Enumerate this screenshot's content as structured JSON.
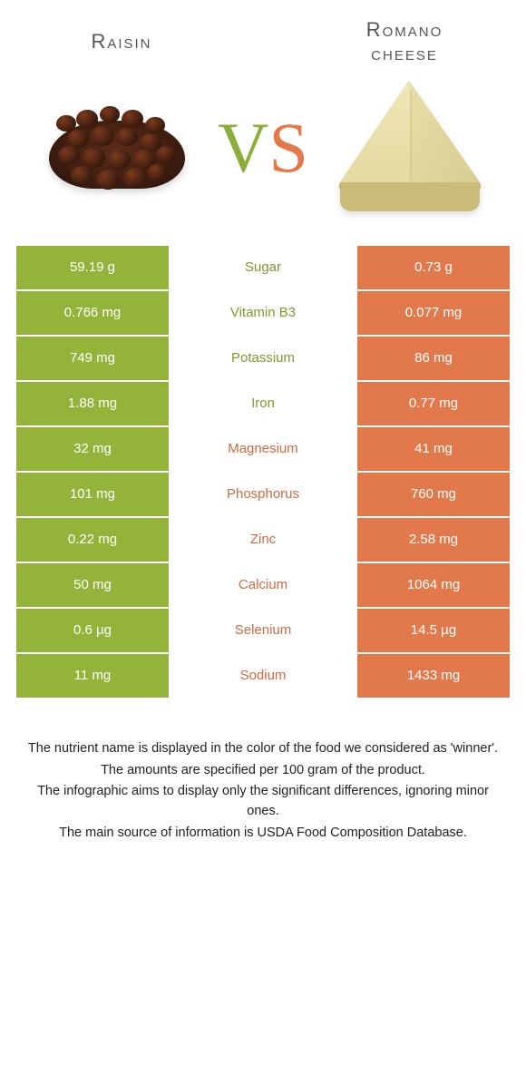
{
  "colors": {
    "green": "#93b33a",
    "orange": "#e2794c",
    "label_green": "#7d9a30",
    "label_orange": "#cf6a43",
    "bg": "#ffffff"
  },
  "header": {
    "left_title": "Raisin",
    "right_title": "Romano\ncheese",
    "vs_v": "V",
    "vs_s": "S"
  },
  "rows": [
    {
      "nutrient": "Sugar",
      "left": "59.19 g",
      "right": "0.73 g",
      "winner": "left"
    },
    {
      "nutrient": "Vitamin B3",
      "left": "0.766 mg",
      "right": "0.077 mg",
      "winner": "left"
    },
    {
      "nutrient": "Potassium",
      "left": "749 mg",
      "right": "86 mg",
      "winner": "left"
    },
    {
      "nutrient": "Iron",
      "left": "1.88 mg",
      "right": "0.77 mg",
      "winner": "left"
    },
    {
      "nutrient": "Magnesium",
      "left": "32 mg",
      "right": "41 mg",
      "winner": "right"
    },
    {
      "nutrient": "Phosphorus",
      "left": "101 mg",
      "right": "760 mg",
      "winner": "right"
    },
    {
      "nutrient": "Zinc",
      "left": "0.22 mg",
      "right": "2.58 mg",
      "winner": "right"
    },
    {
      "nutrient": "Calcium",
      "left": "50 mg",
      "right": "1064 mg",
      "winner": "right"
    },
    {
      "nutrient": "Selenium",
      "left": "0.6 µg",
      "right": "14.5 µg",
      "winner": "right"
    },
    {
      "nutrient": "Sodium",
      "left": "11 mg",
      "right": "1433 mg",
      "winner": "right"
    }
  ],
  "footnotes": [
    "The nutrient name is displayed in the color of the food we considered as 'winner'.",
    "The amounts are specified per 100 gram of the product.",
    "The infographic aims to display only the significant differences, ignoring minor ones.",
    "The main source of information is USDA Food Composition Database."
  ]
}
